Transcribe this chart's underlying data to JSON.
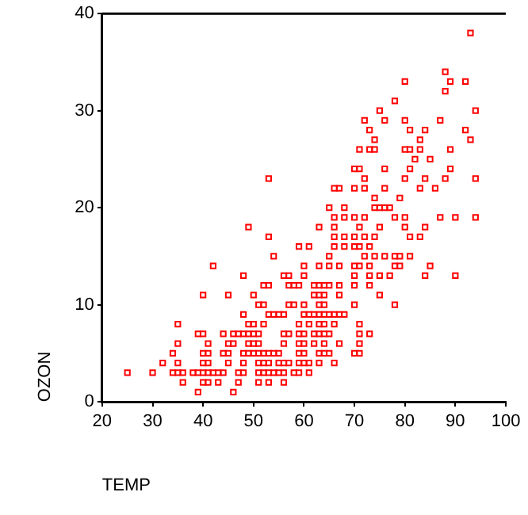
{
  "chart_data": {
    "type": "scatter",
    "xlabel": "TEMP",
    "ylabel": "OZON",
    "xlim": [
      20,
      100
    ],
    "xticks": [
      20,
      30,
      40,
      50,
      60,
      70,
      80,
      90,
      100
    ],
    "ylim": [
      0,
      40
    ],
    "yticks": [
      0,
      10,
      20,
      30,
      40
    ],
    "grid": false,
    "legend": false,
    "marker": "square",
    "series": [
      {
        "color": "#ff0000",
        "x": [
          93,
          88,
          80,
          89,
          92,
          88,
          78,
          75,
          94,
          72,
          76,
          80,
          87,
          73,
          81,
          84,
          92,
          74,
          83,
          93,
          71,
          73,
          74,
          80,
          81,
          83,
          89,
          82,
          85,
          70,
          71,
          76,
          81,
          89,
          53,
          72,
          80,
          84,
          88,
          94,
          66,
          67,
          70,
          72,
          76,
          83,
          86,
          74,
          79,
          65,
          68,
          74,
          75,
          76,
          77,
          66,
          68,
          70,
          72,
          78,
          80,
          87,
          90,
          94,
          49,
          63,
          66,
          71,
          75,
          80,
          84,
          53,
          66,
          68,
          70,
          72,
          74,
          81,
          83,
          59,
          61,
          66,
          68,
          70,
          71,
          73,
          54,
          65,
          72,
          74,
          76,
          78,
          79,
          81,
          42,
          60,
          63,
          65,
          67,
          70,
          71,
          73,
          78,
          79,
          85,
          48,
          56,
          57,
          60,
          70,
          73,
          75,
          77,
          84,
          90,
          52,
          53,
          57,
          58,
          59,
          62,
          63,
          64,
          65,
          67,
          70,
          73,
          40,
          45,
          50,
          62,
          63,
          64,
          67,
          75,
          51,
          52,
          57,
          58,
          60,
          63,
          64,
          70,
          78,
          48,
          53,
          54,
          55,
          56,
          60,
          61,
          62,
          63,
          64,
          65,
          66,
          67,
          68,
          35,
          49,
          50,
          52,
          59,
          61,
          63,
          64,
          66,
          71,
          39,
          40,
          44,
          46,
          47,
          48,
          49,
          50,
          51,
          56,
          57,
          59,
          60,
          62,
          63,
          64,
          65,
          71,
          73,
          35,
          41,
          45,
          46,
          49,
          50,
          51,
          56,
          59,
          60,
          62,
          64,
          67,
          71,
          34,
          40,
          41,
          44,
          45,
          48,
          49,
          50,
          51,
          52,
          53,
          54,
          55,
          59,
          60,
          63,
          64,
          65,
          70,
          71,
          32,
          35,
          40,
          41,
          45,
          48,
          51,
          52,
          53,
          55,
          56,
          57,
          59,
          60,
          61,
          63,
          66,
          25,
          30,
          34,
          35,
          36,
          38,
          39,
          40,
          41,
          42,
          43,
          44,
          47,
          48,
          51,
          52,
          53,
          54,
          55,
          56,
          58,
          59,
          61,
          36,
          40,
          41,
          43,
          47,
          51,
          53,
          56,
          39,
          46
        ],
        "values": [
          38,
          34,
          33,
          33,
          33,
          32,
          31,
          30,
          30,
          29,
          29,
          29,
          29,
          28,
          28,
          28,
          28,
          27,
          27,
          27,
          26,
          26,
          26,
          26,
          26,
          26,
          26,
          25,
          25,
          24,
          24,
          24,
          24,
          24,
          23,
          23,
          23,
          23,
          23,
          23,
          22,
          22,
          22,
          22,
          22,
          22,
          22,
          21,
          21,
          20,
          20,
          20,
          20,
          20,
          20,
          19,
          19,
          19,
          19,
          19,
          19,
          19,
          19,
          19,
          18,
          18,
          18,
          18,
          18,
          18,
          18,
          17,
          17,
          17,
          17,
          17,
          17,
          17,
          17,
          16,
          16,
          16,
          16,
          16,
          16,
          16,
          15,
          15,
          15,
          15,
          15,
          15,
          15,
          15,
          14,
          14,
          14,
          14,
          14,
          14,
          14,
          14,
          14,
          14,
          14,
          13,
          13,
          13,
          13,
          13,
          13,
          13,
          13,
          13,
          13,
          12,
          12,
          12,
          12,
          12,
          12,
          12,
          12,
          12,
          12,
          12,
          12,
          11,
          11,
          11,
          11,
          11,
          11,
          11,
          11,
          10,
          10,
          10,
          10,
          10,
          10,
          10,
          10,
          10,
          9,
          9,
          9,
          9,
          9,
          9,
          9,
          9,
          9,
          9,
          9,
          9,
          9,
          9,
          8,
          8,
          8,
          8,
          8,
          8,
          8,
          8,
          8,
          8,
          7,
          7,
          7,
          7,
          7,
          7,
          7,
          7,
          7,
          7,
          7,
          7,
          7,
          7,
          7,
          7,
          7,
          7,
          7,
          6,
          6,
          6,
          6,
          6,
          6,
          6,
          6,
          6,
          6,
          6,
          6,
          6,
          6,
          5,
          5,
          5,
          5,
          5,
          5,
          5,
          5,
          5,
          5,
          5,
          5,
          5,
          5,
          5,
          5,
          5,
          5,
          5,
          5,
          4,
          4,
          4,
          4,
          4,
          4,
          4,
          4,
          4,
          4,
          4,
          4,
          4,
          4,
          4,
          4,
          4,
          3,
          3,
          3,
          3,
          3,
          3,
          3,
          3,
          3,
          3,
          3,
          3,
          3,
          3,
          3,
          3,
          3,
          3,
          3,
          3,
          3,
          3,
          3,
          2,
          2,
          2,
          2,
          2,
          2,
          2,
          2,
          1,
          1
        ]
      }
    ]
  }
}
